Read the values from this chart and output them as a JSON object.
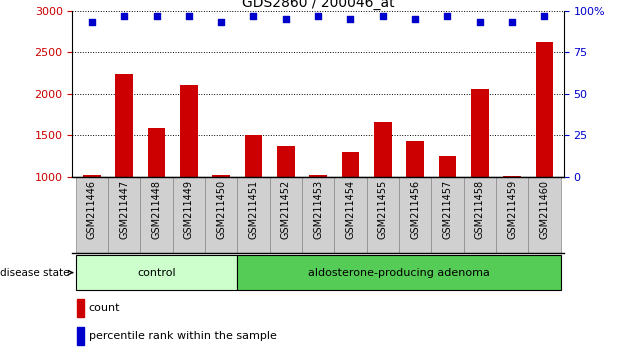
{
  "title": "GDS2860 / 200046_at",
  "samples": [
    "GSM211446",
    "GSM211447",
    "GSM211448",
    "GSM211449",
    "GSM211450",
    "GSM211451",
    "GSM211452",
    "GSM211453",
    "GSM211454",
    "GSM211455",
    "GSM211456",
    "GSM211457",
    "GSM211458",
    "GSM211459",
    "GSM211460"
  ],
  "counts": [
    1020,
    2240,
    1590,
    2100,
    1020,
    1510,
    1370,
    1020,
    1300,
    1660,
    1430,
    1250,
    2060,
    1010,
    2620
  ],
  "percentiles": [
    93,
    97,
    97,
    97,
    93,
    97,
    95,
    97,
    95,
    97,
    95,
    97,
    93,
    93,
    97
  ],
  "n_control": 5,
  "n_adenoma": 10,
  "bar_color": "#cc0000",
  "percentile_color": "#0000cc",
  "ylim_left": [
    1000,
    3000
  ],
  "ylim_right": [
    0,
    100
  ],
  "yticks_left": [
    1000,
    1500,
    2000,
    2500,
    3000
  ],
  "yticks_right": [
    0,
    25,
    50,
    75,
    100
  ],
  "control_label": "control",
  "adenoma_label": "aldosterone-producing adenoma",
  "disease_state_label": "disease state",
  "control_bg": "#ccffcc",
  "adenoma_bg": "#55cc55",
  "sample_cell_bg": "#d0d0d0",
  "legend_count_label": "count",
  "legend_percentile_label": "percentile rank within the sample",
  "tick_label_color": "#cc0000",
  "right_tick_color": "#0000cc",
  "background_color": "#ffffff",
  "title_fontsize": 10,
  "label_fontsize": 7,
  "disease_fontsize": 8
}
